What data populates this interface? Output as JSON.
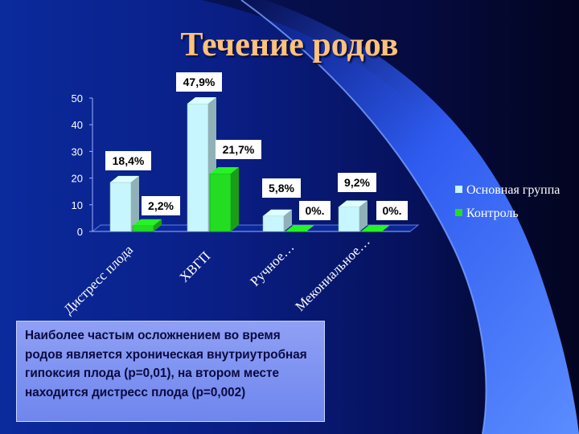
{
  "slide": {
    "title": "Течение родов",
    "note": "Наиболее частым осложнением во время родов является хроническая внутриутробная гипоксия плода (p=0,01), на втором месте находится дистресс плода (p=0,002)"
  },
  "colors": {
    "main_group": "#c8f6ff",
    "control": "#22dd22",
    "title": "#ffc27a",
    "label_bg": "#ffffff"
  },
  "chart_data": {
    "type": "bar",
    "title": "",
    "categories": [
      "Дистресс плода",
      "ХВГП",
      "Ручное…",
      "Мекониальное…"
    ],
    "series": [
      {
        "name": "Основная группа",
        "values": [
          18.4,
          47.9,
          5.8,
          9.2
        ],
        "labels": [
          "18,4%",
          "47,9%",
          "5,8%",
          "9,2%"
        ]
      },
      {
        "name": "Контроль",
        "values": [
          2.2,
          21.7,
          0,
          0
        ],
        "labels": [
          "2,2%",
          "21,7%",
          "0%.",
          "0%."
        ]
      }
    ],
    "ylim": [
      0,
      50
    ],
    "yticks": [
      "0",
      "10",
      "20",
      "30",
      "40",
      "50"
    ],
    "legend_position": "right",
    "grid": false
  }
}
